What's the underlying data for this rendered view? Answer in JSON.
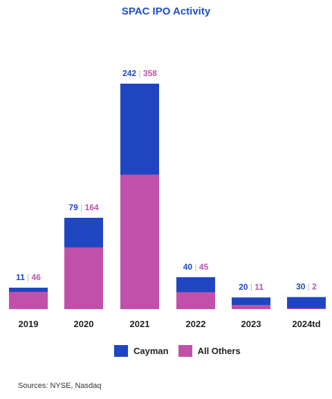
{
  "colors": {
    "cayman": "#1f45c0",
    "others": "#c150ab",
    "divider": "#bbbbbb",
    "text": "#222222",
    "title": "#1f4fc1"
  },
  "chart_data": {
    "type": "bar",
    "stacked": true,
    "title": "SPAC IPO Activity",
    "categories": [
      "2019",
      "2020",
      "2021",
      "2022",
      "2023",
      "2024td"
    ],
    "series": [
      {
        "name": "Cayman",
        "values": [
          11,
          79,
          242,
          40,
          20,
          30
        ]
      },
      {
        "name": "All Others",
        "values": [
          46,
          164,
          358,
          45,
          11,
          2
        ]
      }
    ],
    "ylim": [
      0,
      600
    ],
    "grid": false,
    "legend_position": "bottom"
  },
  "legend": {
    "cayman_label": "Cayman",
    "others_label": "All Others"
  },
  "source": "Sources: NYSE, Nasdaq"
}
